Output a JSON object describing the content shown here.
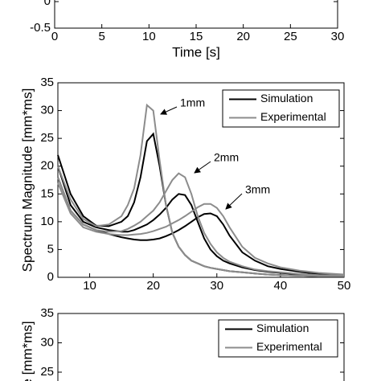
{
  "chart_data": [
    {
      "type": "line",
      "xlabel": "Time [s]",
      "xlim": [
        0,
        30
      ],
      "xticks": [
        0,
        5,
        10,
        15,
        20,
        25,
        30
      ],
      "ylim": [
        -0.5,
        0
      ],
      "yticks": [
        -0.5,
        0
      ],
      "series": []
    },
    {
      "type": "line",
      "ylabel": "Spectrum Magnitude [mm*ms]",
      "xlim": [
        5,
        50
      ],
      "xticks": [
        10,
        20,
        30,
        40,
        50
      ],
      "ylim": [
        0,
        35
      ],
      "yticks": [
        0,
        5,
        10,
        15,
        20,
        25,
        30,
        35
      ],
      "x": [
        5,
        7,
        9,
        11,
        13,
        15,
        16,
        17,
        18,
        19,
        20,
        21,
        22,
        23,
        24,
        25,
        26,
        27,
        28,
        29,
        30,
        31,
        32,
        34,
        36,
        38,
        40,
        43,
        46,
        50
      ],
      "series": [
        {
          "name": "Simulation",
          "color": "#000000",
          "curves": [
            [
              22,
              15,
              11,
              9.3,
              9.2,
              10,
              11,
              13.5,
              18,
              24.5,
              25.8,
              20,
              13,
              8,
              5.5,
              4,
              3,
              2.5,
              2,
              1.7,
              1.5,
              1.3,
              1.1,
              0.9,
              0.7,
              0.5,
              0.4,
              0.3,
              0.2,
              0.2
            ],
            [
              20,
              13,
              10,
              9,
              8.5,
              8.2,
              8.2,
              8.5,
              9,
              9.5,
              10.3,
              11.3,
              12.5,
              14,
              15,
              14.8,
              13,
              10,
              7,
              5,
              3.8,
              3,
              2.5,
              1.8,
              1.3,
              1,
              0.8,
              0.5,
              0.4,
              0.3
            ],
            [
              18,
              12,
              9.5,
              8.5,
              7.8,
              7.2,
              7,
              6.8,
              6.7,
              6.7,
              6.8,
              7,
              7.4,
              7.9,
              8.5,
              9.2,
              10,
              10.8,
              11.4,
              11.5,
              11,
              9.5,
              7.5,
              4.5,
              3,
              2,
              1.5,
              1,
              0.6,
              0.4
            ]
          ]
        },
        {
          "name": "Experimental",
          "color": "#8c8c8c",
          "curves": [
            [
              20,
              14,
              10.5,
              9.2,
              9.5,
              11,
              13,
              16,
              22,
              31,
              30,
              21,
              13,
              8,
              5.5,
              4,
              3,
              2.5,
              2,
              1.7,
              1.5,
              1.3,
              1.1,
              0.9,
              0.7,
              0.5,
              0.4,
              0.3,
              0.2,
              0.2
            ],
            [
              18,
              12,
              9.5,
              8.5,
              8.2,
              8.3,
              8.7,
              9.3,
              10,
              11,
              12,
              13.5,
              15.5,
              17.5,
              18.7,
              18,
              15,
              11,
              8,
              6,
              4.5,
              3.5,
              2.8,
              2,
              1.4,
              1.1,
              0.9,
              0.6,
              0.4,
              0.3
            ],
            [
              17,
              11.5,
              9,
              8.2,
              7.8,
              7.6,
              7.6,
              7.7,
              7.8,
              8,
              8.3,
              8.7,
              9.1,
              9.7,
              10.3,
              11,
              11.8,
              12.6,
              13.2,
              13.2,
              12.5,
              11,
              9,
              5.5,
              3.5,
              2.5,
              1.8,
              1.2,
              0.8,
              0.5
            ]
          ]
        }
      ],
      "annotations": [
        "1mm",
        "2mm",
        "3mm"
      ]
    },
    {
      "type": "line",
      "ylabel": "e [mm*ms]",
      "ylim": [
        25,
        35
      ],
      "yticks": [
        25,
        30,
        35
      ],
      "series": [
        {
          "name": "Simulation",
          "color": "#000000",
          "curves": []
        },
        {
          "name": "Experimental",
          "color": "#8c8c8c",
          "curves": []
        }
      ]
    }
  ]
}
